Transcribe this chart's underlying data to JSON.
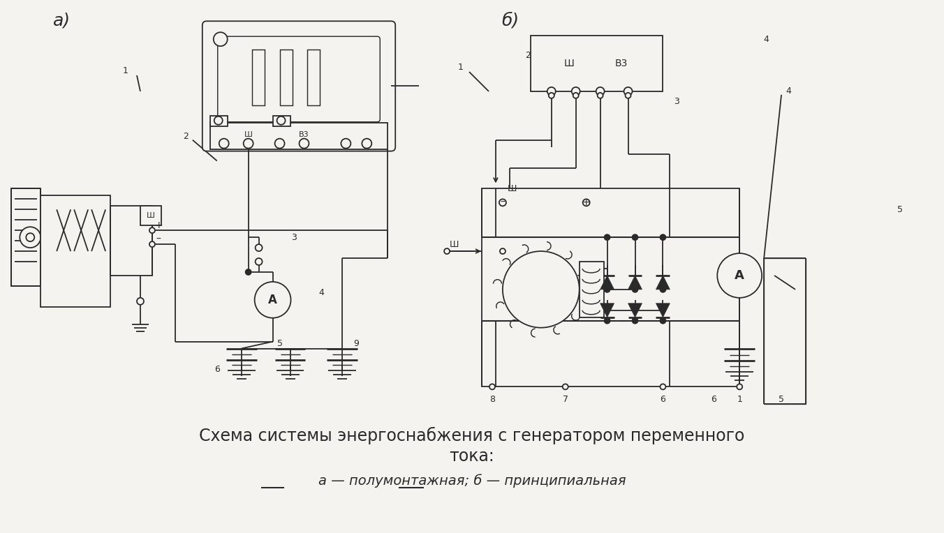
{
  "title_line1": "Схема системы энергоснабжения с генератором переменного",
  "title_line2": "тока:",
  "subtitle": "а — полумонтажная; б — принципиальная",
  "label_a": "а)",
  "label_b": "б)",
  "bg_color": "#f5f3ef",
  "line_color": "#2a2a2a",
  "title_fontsize": 17,
  "subtitle_fontsize": 14,
  "label_fontsize": 18
}
